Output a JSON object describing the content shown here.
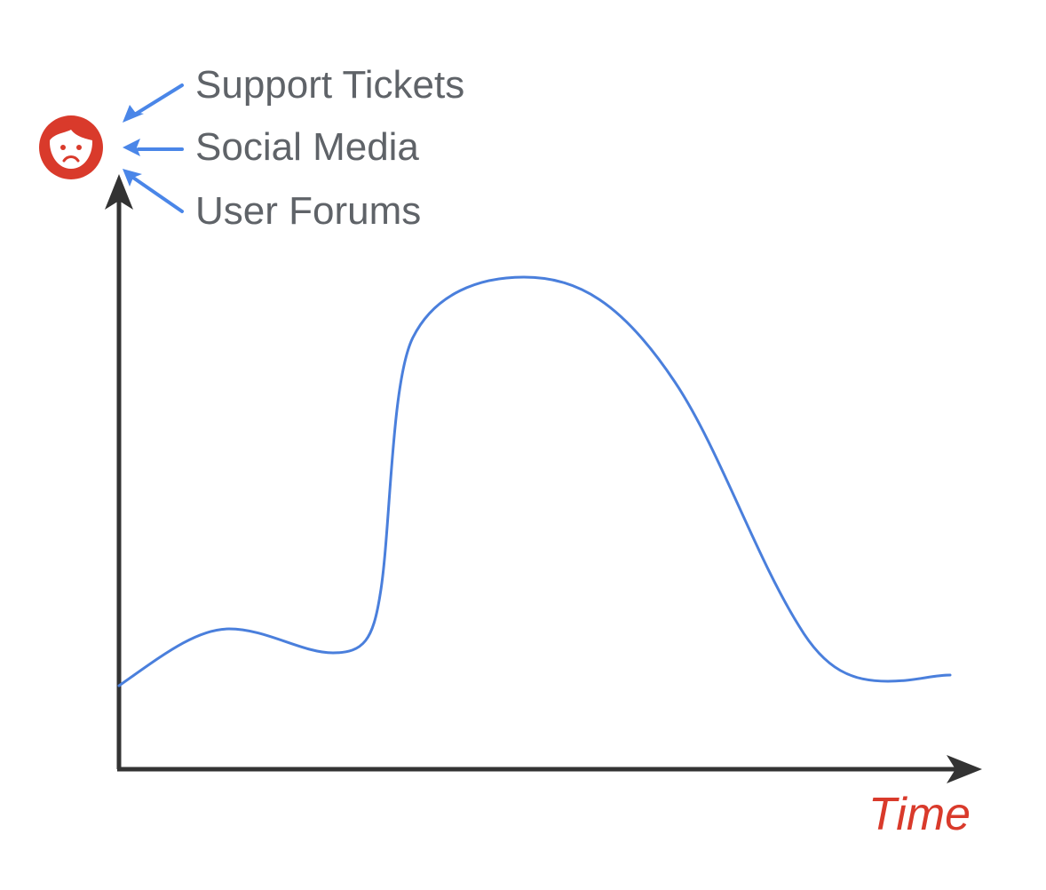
{
  "sources": [
    {
      "id": "support-tickets",
      "label": "Support Tickets"
    },
    {
      "id": "social-media",
      "label": "Social Media"
    },
    {
      "id": "user-forums",
      "label": "User Forums"
    }
  ],
  "x_axis_label": "Time",
  "user_icon": "sad-user-face-icon",
  "colors": {
    "axis": "#333333",
    "curve": "#4a7fdc",
    "arrows": "#4a86e8",
    "label_text": "#5f6368",
    "accent": "#d93a2b",
    "face_fill": "#ffffff"
  }
}
